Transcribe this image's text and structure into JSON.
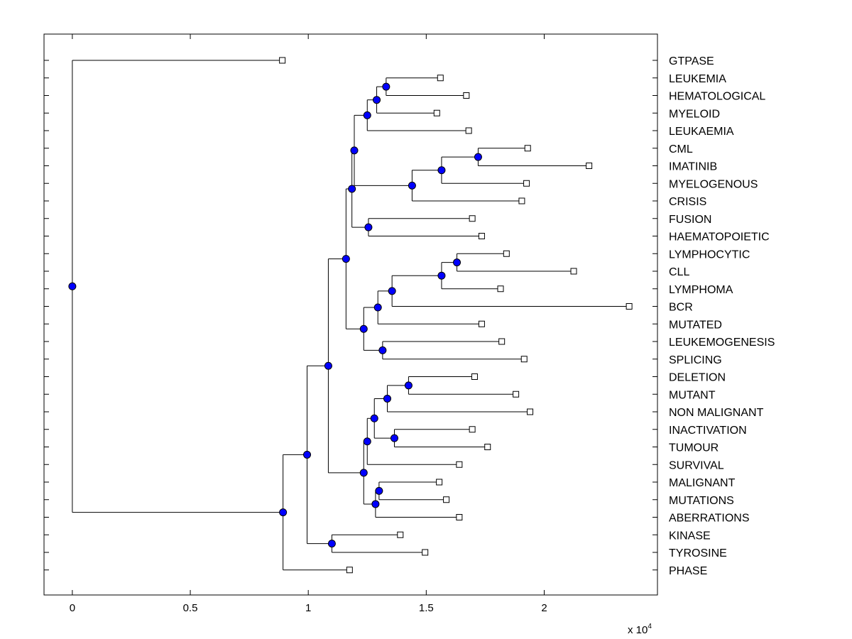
{
  "chart_data": {
    "type": "dendrogram",
    "title": "",
    "xlabel": "",
    "ylabel": "",
    "x_multiplier_label": "x 10",
    "x_multiplier_exponent": "4",
    "xlim": [
      -0.12,
      2.48
    ],
    "x_ticks": [
      0,
      0.5,
      1,
      1.5,
      2
    ],
    "x_tick_labels": [
      "0",
      "0.5",
      "1",
      "1.5",
      "2"
    ],
    "leaves": [
      {
        "label": "GTPASE",
        "x": 0.89
      },
      {
        "label": "LEUKEMIA",
        "x": 1.56
      },
      {
        "label": "HEMATOLOGICAL",
        "x": 1.67
      },
      {
        "label": "MYELOID",
        "x": 1.545
      },
      {
        "label": "LEUKAEMIA",
        "x": 1.68
      },
      {
        "label": "CML",
        "x": 1.93
      },
      {
        "label": "IMATINIB",
        "x": 2.19
      },
      {
        "label": "MYELOGENOUS",
        "x": 1.925
      },
      {
        "label": "CRISIS",
        "x": 1.905
      },
      {
        "label": "FUSION",
        "x": 1.695
      },
      {
        "label": "HAEMATOPOIETIC",
        "x": 1.735
      },
      {
        "label": "LYMPHOCYTIC",
        "x": 1.84
      },
      {
        "label": "CLL",
        "x": 2.125
      },
      {
        "label": "LYMPHOMA",
        "x": 1.815
      },
      {
        "label": "BCR",
        "x": 2.36
      },
      {
        "label": "MUTATED",
        "x": 1.735
      },
      {
        "label": "LEUKEMOGENESIS",
        "x": 1.82
      },
      {
        "label": "SPLICING",
        "x": 1.915
      },
      {
        "label": "DELETION",
        "x": 1.705
      },
      {
        "label": "MUTANT",
        "x": 1.88
      },
      {
        "label": "NON MALIGNANT",
        "x": 1.94
      },
      {
        "label": "INACTIVATION",
        "x": 1.695
      },
      {
        "label": "TUMOUR",
        "x": 1.76
      },
      {
        "label": "SURVIVAL",
        "x": 1.64
      },
      {
        "label": "MALIGNANT",
        "x": 1.555
      },
      {
        "label": "MUTATIONS",
        "x": 1.585
      },
      {
        "label": "ABERRATIONS",
        "x": 1.64
      },
      {
        "label": "KINASE",
        "x": 1.39
      },
      {
        "label": "TYROSINE",
        "x": 1.495
      },
      {
        "label": "PHASE",
        "x": 1.175
      }
    ],
    "merges": [
      {
        "id": "m_leukemia_hema",
        "x": 1.33,
        "children": [
          "LEUKEMIA",
          "HEMATOLOGICAL"
        ]
      },
      {
        "id": "m_myeloid",
        "x": 1.29,
        "children": [
          "m_leukemia_hema",
          "MYELOID"
        ]
      },
      {
        "id": "m_leukaemia",
        "x": 1.25,
        "children": [
          "m_myeloid",
          "LEUKAEMIA"
        ]
      },
      {
        "id": "m_cml_imatinib",
        "x": 1.72,
        "children": [
          "CML",
          "IMATINIB"
        ]
      },
      {
        "id": "m_myelogenous",
        "x": 1.565,
        "children": [
          "m_cml_imatinib",
          "MYELOGENOUS"
        ]
      },
      {
        "id": "m_crisis",
        "x": 1.44,
        "children": [
          "m_myelogenous",
          "CRISIS"
        ]
      },
      {
        "id": "m_upper_myeloid",
        "x": 1.195,
        "children": [
          "m_leukaemia",
          "m_crisis"
        ]
      },
      {
        "id": "m_fusion_haem",
        "x": 1.255,
        "children": [
          "FUSION",
          "HAEMATOPOIETIC"
        ]
      },
      {
        "id": "m_myeloid_block",
        "x": 1.185,
        "children": [
          "m_upper_myeloid",
          "m_fusion_haem"
        ]
      },
      {
        "id": "m_lymph_cll",
        "x": 1.63,
        "children": [
          "LYMPHOCYTIC",
          "CLL"
        ]
      },
      {
        "id": "m_lymphoma",
        "x": 1.565,
        "children": [
          "m_lymph_cll",
          "LYMPHOMA"
        ]
      },
      {
        "id": "m_bcr",
        "x": 1.355,
        "children": [
          "m_lymphoma",
          "BCR"
        ]
      },
      {
        "id": "m_mutated",
        "x": 1.295,
        "children": [
          "m_bcr",
          "MUTATED"
        ]
      },
      {
        "id": "m_leukemo_splicing",
        "x": 1.315,
        "children": [
          "LEUKEMOGENESIS",
          "SPLICING"
        ]
      },
      {
        "id": "m_lymphoid_block",
        "x": 1.235,
        "children": [
          "m_mutated",
          "m_leukemo_splicing"
        ]
      },
      {
        "id": "m_disease_block",
        "x": 1.16,
        "children": [
          "m_myeloid_block",
          "m_lymphoid_block"
        ]
      },
      {
        "id": "m_deletion_mutant",
        "x": 1.425,
        "children": [
          "DELETION",
          "MUTANT"
        ]
      },
      {
        "id": "m_nonmalignant",
        "x": 1.335,
        "children": [
          "m_deletion_mutant",
          "NON MALIGNANT"
        ]
      },
      {
        "id": "m_inact_tumour",
        "x": 1.365,
        "children": [
          "INACTIVATION",
          "TUMOUR"
        ]
      },
      {
        "id": "m_mutation_tumour",
        "x": 1.28,
        "children": [
          "m_nonmalignant",
          "m_inact_tumour"
        ]
      },
      {
        "id": "m_survival",
        "x": 1.25,
        "children": [
          "m_mutation_tumour",
          "SURVIVAL"
        ]
      },
      {
        "id": "m_malig_mutations",
        "x": 1.3,
        "children": [
          "MALIGNANT",
          "MUTATIONS"
        ]
      },
      {
        "id": "m_aberrations",
        "x": 1.285,
        "children": [
          "m_malig_mutations",
          "ABERRATIONS"
        ]
      },
      {
        "id": "m_mutation_block",
        "x": 1.235,
        "children": [
          "m_survival",
          "m_aberrations"
        ]
      },
      {
        "id": "m_big",
        "x": 1.085,
        "children": [
          "m_disease_block",
          "m_mutation_block"
        ]
      },
      {
        "id": "m_kinase_tyrosine",
        "x": 1.1,
        "children": [
          "KINASE",
          "TYROSINE"
        ]
      },
      {
        "id": "m_big_kinase",
        "x": 0.995,
        "children": [
          "m_big",
          "m_kinase_tyrosine"
        ]
      },
      {
        "id": "m_phase",
        "x": 0.893,
        "children": [
          "m_big_kinase",
          "PHASE"
        ]
      },
      {
        "id": "m_root",
        "x": 0.0,
        "children": [
          "GTPASE",
          "m_phase"
        ]
      }
    ],
    "colors": {
      "node_fill": "#0000ff",
      "line": "#000000",
      "leaf_fill": "#ffffff"
    }
  }
}
